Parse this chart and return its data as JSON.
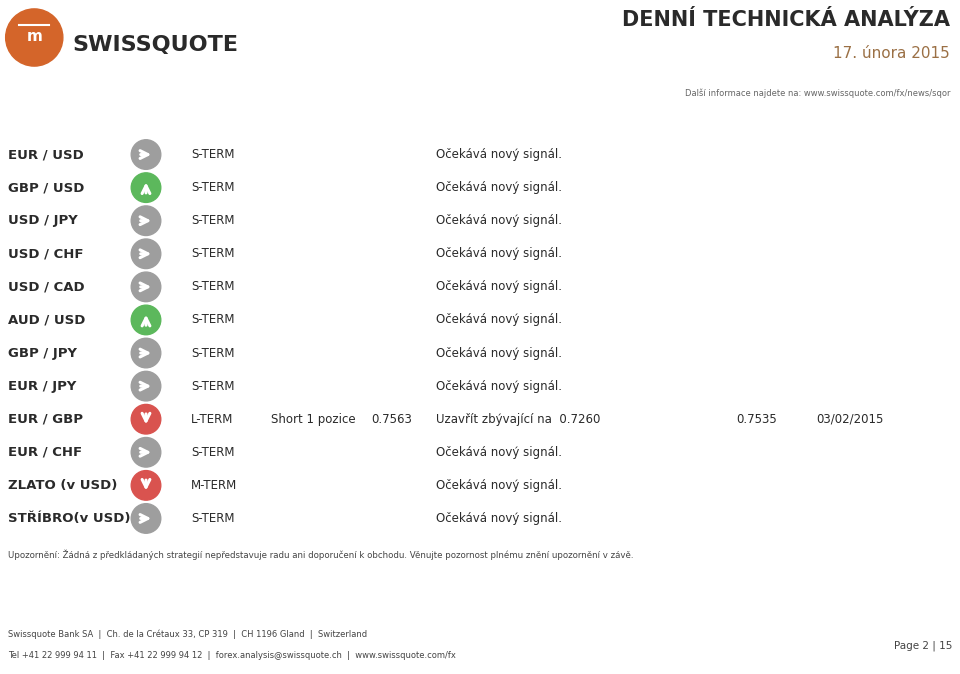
{
  "title": "DENNÍ TECHNICKÁ ANALÝZA",
  "subtitle": "17. února 2015",
  "header_info": "Další informace najdete na: www.swissquote.com/fx/news/sqor",
  "header_bg": "#6b6560",
  "rows": [
    {
      "pair": "EUR / USD",
      "arrow": "right",
      "arrow_color": "gray",
      "horizon": "S-TERM",
      "strategy": "",
      "vstupni": "",
      "comment": "Očekává nový signál.",
      "stop": "",
      "vstup": ""
    },
    {
      "pair": "GBP / USD",
      "arrow": "up",
      "arrow_color": "green",
      "horizon": "S-TERM",
      "strategy": "",
      "vstupni": "",
      "comment": "Očekává nový signál.",
      "stop": "",
      "vstup": ""
    },
    {
      "pair": "USD / JPY",
      "arrow": "right",
      "arrow_color": "gray",
      "horizon": "S-TERM",
      "strategy": "",
      "vstupni": "",
      "comment": "Očekává nový signál.",
      "stop": "",
      "vstup": ""
    },
    {
      "pair": "USD / CHF",
      "arrow": "right",
      "arrow_color": "gray",
      "horizon": "S-TERM",
      "strategy": "",
      "vstupni": "",
      "comment": "Očekává nový signál.",
      "stop": "",
      "vstup": ""
    },
    {
      "pair": "USD / CAD",
      "arrow": "right",
      "arrow_color": "gray",
      "horizon": "S-TERM",
      "strategy": "",
      "vstupni": "",
      "comment": "Očekává nový signál.",
      "stop": "",
      "vstup": ""
    },
    {
      "pair": "AUD / USD",
      "arrow": "up",
      "arrow_color": "green",
      "horizon": "S-TERM",
      "strategy": "",
      "vstupni": "",
      "comment": "Očekává nový signál.",
      "stop": "",
      "vstup": ""
    },
    {
      "pair": "GBP / JPY",
      "arrow": "right",
      "arrow_color": "gray",
      "horizon": "S-TERM",
      "strategy": "",
      "vstupni": "",
      "comment": "Očekává nový signál.",
      "stop": "",
      "vstup": ""
    },
    {
      "pair": "EUR / JPY",
      "arrow": "right",
      "arrow_color": "gray",
      "horizon": "S-TERM",
      "strategy": "",
      "vstupni": "",
      "comment": "Očekává nový signál.",
      "stop": "",
      "vstup": ""
    },
    {
      "pair": "EUR / GBP",
      "arrow": "down",
      "arrow_color": "red",
      "horizon": "L-TERM",
      "strategy": "Short 1 pozice",
      "vstupni": "0.7563",
      "comment": "Uzavřít zbývající na  0.7260",
      "stop": "0.7535",
      "vstup": "03/02/2015"
    },
    {
      "pair": "EUR / CHF",
      "arrow": "right",
      "arrow_color": "gray",
      "horizon": "S-TERM",
      "strategy": "",
      "vstupni": "",
      "comment": "Očekává nový signál.",
      "stop": "",
      "vstup": ""
    },
    {
      "pair": "ZLATO (v USD)",
      "arrow": "down",
      "arrow_color": "red",
      "horizon": "M-TERM",
      "strategy": "",
      "vstupni": "",
      "comment": "Očekává nový signál.",
      "stop": "",
      "vstup": ""
    },
    {
      "pair": "STŘÍBRO(v USD)",
      "arrow": "right",
      "arrow_color": "gray",
      "horizon": "S-TERM",
      "strategy": "",
      "vstupni": "",
      "comment": "Očekává nový signál.",
      "stop": "",
      "vstup": ""
    }
  ],
  "row_bg_odd": "#f2f2f2",
  "row_bg_even": "#ffffff",
  "logo_circle_color": "#d4652a",
  "logo_text_color": "#ffffff",
  "title_color": "#2a2a2a",
  "subtitle_color": "#9b7045",
  "info_color": "#666666",
  "pair_color": "#2a2a2a",
  "cell_color": "#2a2a2a",
  "separator_color": "#cccccc",
  "divider_color": "#dddddd",
  "footer_bar1": "#5c5550",
  "footer_bar2": "#c87941",
  "footer_text": "Upozornění: Žádná z předkládaných strategií nepředstavuje radu ani doporučení k obchodu. Věnujte pozornost plnému znění upozornění v závě.",
  "footer_company": "Swissquote Bank SA",
  "footer_addr1": "Ch. de la Crétaux 33, CP 319",
  "footer_addr2": "CH 1196 Gland",
  "footer_country": "Switzerland",
  "footer_tel": "Tel +41 22 999 94 11",
  "footer_fax": "Fax +41 22 999 94 12",
  "footer_email": "forex.analysis@swissquote.ch",
  "footer_web": "www.swissquote.com/fx",
  "footer_page": "Page 2 | 15",
  "arrow_gray": "#9e9e9e",
  "arrow_green": "#5cb85c",
  "arrow_red": "#d9534f"
}
